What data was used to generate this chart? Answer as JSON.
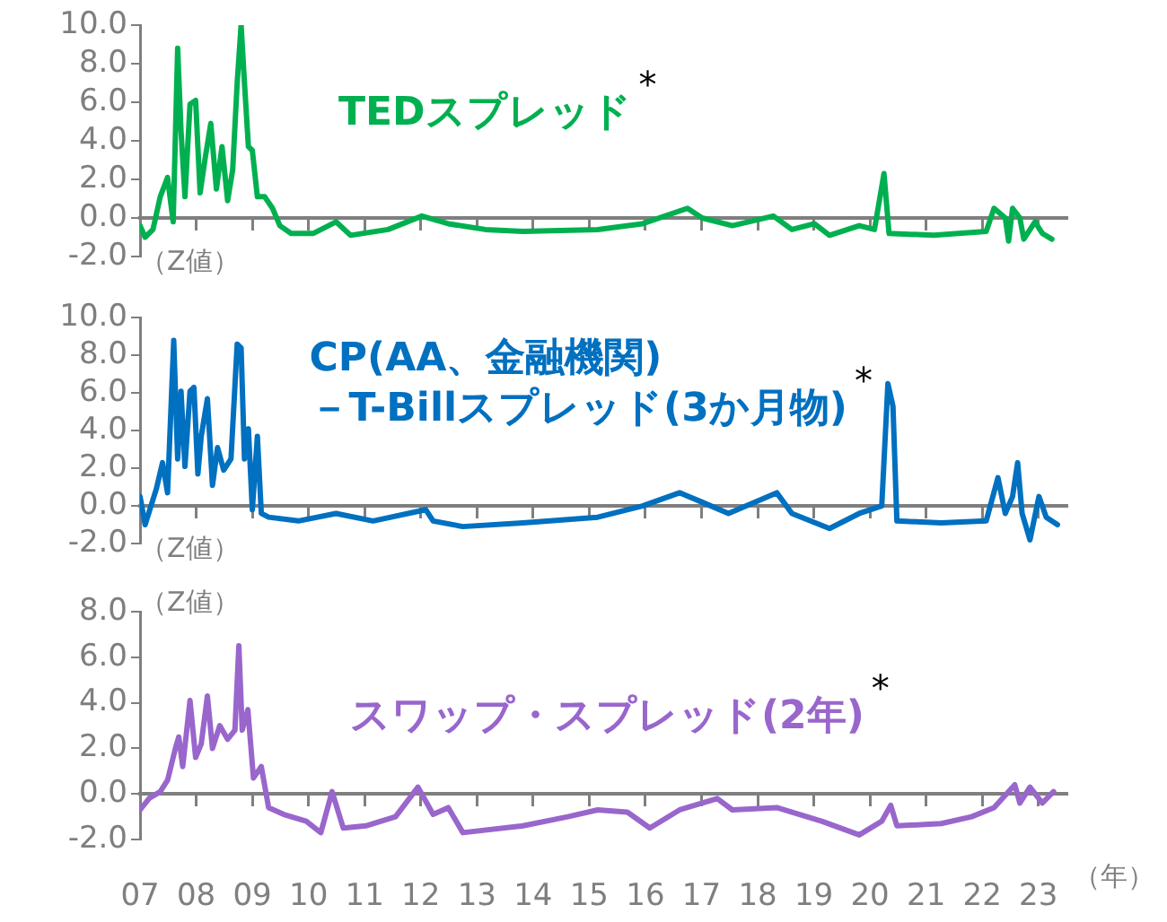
{
  "chart_data": [
    {
      "type": "line",
      "marker": "none",
      "tick_labels": "y",
      "annotations": [
        "（Z値）",
        "*"
      ],
      "xlim": [
        2007,
        2023.5
      ],
      "xticks": [
        {
          "value": 2007,
          "label": null
        },
        {
          "value": 2008,
          "label": null
        },
        {
          "value": 2009,
          "label": null
        },
        {
          "value": 2010,
          "label": null
        },
        {
          "value": 2011,
          "label": null
        },
        {
          "value": 2012,
          "label": null
        },
        {
          "value": 2013,
          "label": null
        },
        {
          "value": 2014,
          "label": null
        },
        {
          "value": 2015,
          "label": null
        },
        {
          "value": 2016,
          "label": null
        },
        {
          "value": 2017,
          "label": null
        },
        {
          "value": 2018,
          "label": null
        },
        {
          "value": 2019,
          "label": null
        },
        {
          "value": 2020,
          "label": null
        },
        {
          "value": 2021,
          "label": null
        },
        {
          "value": 2022,
          "label": null
        },
        {
          "value": 2023,
          "label": null
        }
      ],
      "ylim": [
        -2,
        10
      ],
      "yticks": [
        {
          "value": -2,
          "label": "-2.0"
        },
        {
          "value": 0,
          "label": "0.0"
        },
        {
          "value": 2,
          "label": "2.0"
        },
        {
          "value": 4,
          "label": "4.0"
        },
        {
          "value": 6,
          "label": "6.0"
        },
        {
          "value": 8,
          "label": "8.0"
        },
        {
          "value": 10,
          "label": "10.0"
        }
      ],
      "series": [
        {
          "name": "TEDスプレッド",
          "color": "#00b050",
          "x": [
            2007.0,
            2007.09,
            2007.23,
            2007.36,
            2007.49,
            2007.59,
            2007.67,
            2007.73,
            2007.8,
            2007.89,
            2007.99,
            2008.07,
            2008.16,
            2008.26,
            2008.36,
            2008.46,
            2008.56,
            2008.65,
            2008.73,
            2008.8,
            2008.86,
            2008.93,
            2009.0,
            2009.09,
            2009.22,
            2009.36,
            2009.49,
            2009.69,
            2010.09,
            2010.49,
            2010.75,
            2011.42,
            2012.02,
            2012.49,
            2013.15,
            2013.82,
            2015.15,
            2015.95,
            2016.75,
            2017.01,
            2017.55,
            2018.28,
            2018.61,
            2019.01,
            2019.28,
            2019.81,
            2020.08,
            2020.25,
            2020.34,
            2021.14,
            2022.07,
            2022.21,
            2022.41,
            2022.47,
            2022.54,
            2022.67,
            2022.74,
            2022.94,
            2023.07,
            2023.24
          ],
          "values": [
            -0.4,
            -1.0,
            -0.6,
            1.1,
            2.1,
            -0.2,
            8.8,
            4.5,
            1.1,
            5.9,
            6.1,
            1.3,
            3.1,
            4.9,
            1.5,
            3.7,
            0.9,
            2.5,
            7.0,
            10.0,
            7.0,
            3.7,
            3.5,
            1.1,
            1.1,
            0.5,
            -0.4,
            -0.8,
            -0.8,
            -0.2,
            -0.9,
            -0.6,
            0.1,
            -0.3,
            -0.6,
            -0.7,
            -0.6,
            -0.3,
            0.5,
            0.0,
            -0.4,
            0.1,
            -0.6,
            -0.3,
            -0.9,
            -0.4,
            -0.6,
            2.3,
            -0.8,
            -0.9,
            -0.7,
            0.5,
            0.0,
            -1.2,
            0.5,
            0.0,
            -1.1,
            -0.2,
            -0.8,
            -1.1
          ]
        }
      ]
    },
    {
      "type": "line",
      "marker": "none",
      "tick_labels": "y",
      "annotations": [
        "（Z値）",
        "*"
      ],
      "xlim": [
        2007,
        2023.5
      ],
      "xticks": [
        {
          "value": 2007,
          "label": null
        },
        {
          "value": 2008,
          "label": null
        },
        {
          "value": 2009,
          "label": null
        },
        {
          "value": 2010,
          "label": null
        },
        {
          "value": 2011,
          "label": null
        },
        {
          "value": 2012,
          "label": null
        },
        {
          "value": 2013,
          "label": null
        },
        {
          "value": 2014,
          "label": null
        },
        {
          "value": 2015,
          "label": null
        },
        {
          "value": 2016,
          "label": null
        },
        {
          "value": 2017,
          "label": null
        },
        {
          "value": 2018,
          "label": null
        },
        {
          "value": 2019,
          "label": null
        },
        {
          "value": 2020,
          "label": null
        },
        {
          "value": 2021,
          "label": null
        },
        {
          "value": 2022,
          "label": null
        },
        {
          "value": 2023,
          "label": null
        }
      ],
      "ylim": [
        -2,
        10
      ],
      "yticks": [
        {
          "value": -2,
          "label": "-2.0"
        },
        {
          "value": 0,
          "label": "0.0"
        },
        {
          "value": 2,
          "label": "2.0"
        },
        {
          "value": 4,
          "label": "4.0"
        },
        {
          "value": 6,
          "label": "6.0"
        },
        {
          "value": 8,
          "label": "8.0"
        },
        {
          "value": 10,
          "label": "10.0"
        }
      ],
      "series": [
        {
          "name": "CP(AA、金融機関)\n－T-Billスプレッド(3か月物)",
          "color": "#0070c0",
          "x": [
            2007.0,
            2007.09,
            2007.29,
            2007.4,
            2007.49,
            2007.6,
            2007.67,
            2007.73,
            2007.8,
            2007.89,
            2007.96,
            2008.03,
            2008.09,
            2008.2,
            2008.29,
            2008.38,
            2008.49,
            2008.62,
            2008.73,
            2008.8,
            2008.86,
            2008.93,
            2009.0,
            2009.09,
            2009.16,
            2009.29,
            2009.82,
            2010.49,
            2011.15,
            2012.09,
            2012.22,
            2012.75,
            2013.82,
            2015.15,
            2015.95,
            2016.61,
            2017.01,
            2017.48,
            2018.34,
            2018.61,
            2019.28,
            2019.81,
            2020.21,
            2020.32,
            2020.41,
            2020.48,
            2021.27,
            2022.07,
            2022.28,
            2022.41,
            2022.54,
            2022.63,
            2022.71,
            2022.85,
            2023.01,
            2023.14,
            2023.34
          ],
          "values": [
            0.5,
            -1.0,
            0.9,
            2.3,
            0.7,
            8.8,
            2.5,
            6.1,
            2.1,
            6.1,
            6.3,
            1.7,
            3.7,
            5.7,
            1.1,
            3.1,
            1.9,
            2.5,
            8.6,
            8.4,
            2.5,
            4.1,
            -0.2,
            3.7,
            -0.4,
            -0.6,
            -0.8,
            -0.4,
            -0.8,
            -0.2,
            -0.8,
            -1.1,
            -0.9,
            -0.6,
            0.0,
            0.7,
            0.2,
            -0.4,
            0.7,
            -0.4,
            -1.2,
            -0.4,
            0.0,
            6.5,
            5.3,
            -0.8,
            -0.9,
            -0.8,
            1.5,
            -0.4,
            0.5,
            2.3,
            -0.4,
            -1.8,
            0.5,
            -0.6,
            -1.0
          ]
        }
      ]
    },
    {
      "type": "line",
      "marker": "none",
      "tick_labels": "xy",
      "xlabel": "（年）",
      "annotations": [
        "（Z値）",
        "*"
      ],
      "xlim": [
        2007,
        2023.5
      ],
      "xticks": [
        {
          "value": 2007,
          "label": "07"
        },
        {
          "value": 2008,
          "label": "08"
        },
        {
          "value": 2009,
          "label": "09"
        },
        {
          "value": 2010,
          "label": "10"
        },
        {
          "value": 2011,
          "label": "11"
        },
        {
          "value": 2012,
          "label": "12"
        },
        {
          "value": 2013,
          "label": "13"
        },
        {
          "value": 2014,
          "label": "14"
        },
        {
          "value": 2015,
          "label": "15"
        },
        {
          "value": 2016,
          "label": "16"
        },
        {
          "value": 2017,
          "label": "17"
        },
        {
          "value": 2018,
          "label": "18"
        },
        {
          "value": 2019,
          "label": "19"
        },
        {
          "value": 2020,
          "label": "20"
        },
        {
          "value": 2021,
          "label": "21"
        },
        {
          "value": 2022,
          "label": "22"
        },
        {
          "value": 2023,
          "label": "23"
        }
      ],
      "ylim": [
        -2,
        8
      ],
      "yticks": [
        {
          "value": -2,
          "label": "-2.0"
        },
        {
          "value": 0,
          "label": "0.0"
        },
        {
          "value": 2,
          "label": "2.0"
        },
        {
          "value": 4,
          "label": "4.0"
        },
        {
          "value": 6,
          "label": "6.0"
        },
        {
          "value": 8,
          "label": "8.0"
        }
      ],
      "series": [
        {
          "name": "スワップ・スプレッド(2年)",
          "color": "#9966cc",
          "x": [
            2007.0,
            2007.16,
            2007.36,
            2007.49,
            2007.63,
            2007.69,
            2007.76,
            2007.89,
            2007.99,
            2008.09,
            2008.2,
            2008.29,
            2008.42,
            2008.56,
            2008.69,
            2008.76,
            2008.82,
            2008.92,
            2009.02,
            2009.16,
            2009.29,
            2009.56,
            2009.96,
            2010.22,
            2010.42,
            2010.62,
            2011.02,
            2011.55,
            2011.95,
            2012.22,
            2012.49,
            2012.75,
            2013.82,
            2014.62,
            2015.15,
            2015.68,
            2016.08,
            2016.61,
            2017.28,
            2017.55,
            2018.34,
            2019.14,
            2019.81,
            2020.21,
            2020.37,
            2020.48,
            2021.27,
            2021.81,
            2022.21,
            2022.58,
            2022.67,
            2022.85,
            2023.07,
            2023.27
          ],
          "values": [
            -0.7,
            -0.2,
            0.1,
            0.6,
            2.0,
            2.5,
            1.2,
            4.1,
            1.6,
            2.2,
            4.3,
            2.0,
            3.0,
            2.4,
            2.8,
            6.5,
            2.8,
            3.7,
            0.7,
            1.2,
            -0.6,
            -0.9,
            -1.2,
            -1.7,
            0.1,
            -1.5,
            -1.4,
            -1.0,
            0.3,
            -0.9,
            -0.6,
            -1.7,
            -1.4,
            -1.0,
            -0.7,
            -0.8,
            -1.5,
            -0.7,
            -0.2,
            -0.7,
            -0.6,
            -1.2,
            -1.8,
            -1.2,
            -0.5,
            -1.4,
            -1.3,
            -1.0,
            -0.6,
            0.4,
            -0.4,
            0.3,
            -0.4,
            0.1
          ]
        }
      ]
    }
  ]
}
